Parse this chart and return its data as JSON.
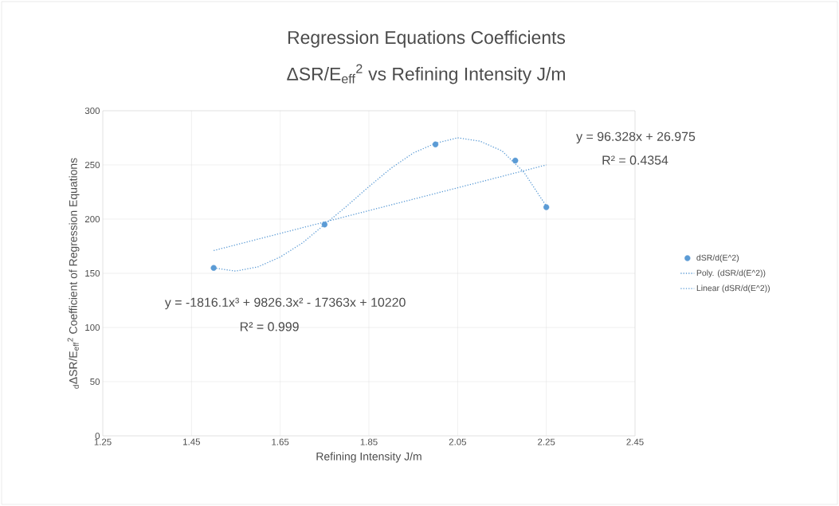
{
  "chart_data": {
    "type": "scatter",
    "title": "Regression Equations Coefficients",
    "subtitle": "ΔSR/E$_{eff}$$^{2}$ vs Refining Intensity J/m",
    "xlabel": "Refining Intensity J/m",
    "ylabel": "$_{d}$ΔSR/E$_{eff}$$^{2}$  Coefficient of Regression Equations",
    "xlim": [
      1.25,
      2.45
    ],
    "xticks": [
      1.25,
      1.45,
      1.65,
      1.85,
      2.05,
      2.25,
      2.45
    ],
    "ylim": [
      0,
      300
    ],
    "yticks": [
      0,
      50,
      100,
      150,
      200,
      250,
      300
    ],
    "grid": true,
    "legend": "right",
    "series": [
      {
        "name": "dSR/d(E^2)",
        "color": "#5b9bd5",
        "marker": "circle",
        "x": [
          1.5,
          1.75,
          2.0,
          2.18,
          2.25
        ],
        "values": [
          155,
          195,
          269,
          254,
          211
        ]
      },
      {
        "name": "Poly. (dSR/d(E^2))",
        "type": "line",
        "color": "#5b9bd5",
        "marker": "none",
        "line_style": "dotted",
        "x": [
          1.5,
          1.55,
          1.6,
          1.65,
          1.7,
          1.75,
          1.8,
          1.85,
          1.9,
          1.95,
          2.0,
          2.05,
          2.1,
          2.15,
          2.2,
          2.25
        ],
        "values": [
          155,
          152,
          156,
          165,
          178,
          195,
          212,
          230,
          247,
          261,
          270,
          275,
          272,
          263,
          243,
          212
        ]
      },
      {
        "name": "Linear (dSR/d(E^2))",
        "type": "line",
        "color": "#5b9bd5",
        "marker": "none",
        "line_style": "dotted",
        "x": [
          1.5,
          2.25
        ],
        "values": [
          171,
          250
        ]
      }
    ],
    "annotations": [
      "y = 96.328x + 26.975",
      "R² = 0.4354",
      "y = -1816.1x³ + 9826.3x² - 17363x + 10220",
      "R² = 0.999"
    ]
  }
}
